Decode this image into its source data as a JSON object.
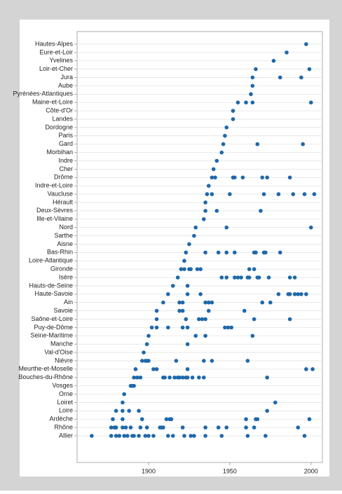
{
  "chart_data": {
    "type": "dotplot",
    "color": "#1f68aa",
    "grid": true,
    "xlim": [
      1856,
      2007
    ],
    "xticks": [
      1900,
      1950,
      2000
    ],
    "categories": [
      "Allier",
      "Rhône",
      "Ardèche",
      "Loire",
      "Loiret",
      "Orne",
      "Vosges",
      "Bouches-du-Rhône",
      "Meurthe-et-Moselle",
      "Nièvre",
      "Val-d'Oise",
      "Manche",
      "Seine-Maritime",
      "Puy-de-Dôme",
      "Saône-et-Loire",
      "Savoie",
      "Ain",
      "Haute-Savoie",
      "Hauts-de-Seine",
      "Isère",
      "Gironde",
      "Loire-Atlantique",
      "Bas-Rhin",
      "Aisne",
      "Sarthe",
      "Nord",
      "Ille-et-Vilaine",
      "Deux-Sèvres",
      "Hérault",
      "Vaucluse",
      "Indre-et-Loire",
      "Drôme",
      "Cher",
      "Indre",
      "Morbihan",
      "Gard",
      "Paris",
      "Dordogne",
      "Landes",
      "Côte-d'Or",
      "Maine-et-Loire",
      "Pyrénées-Atlantiques",
      "Aube",
      "Jura",
      "Loir-et-Cher",
      "Yvelines",
      "Eure-et-Loir",
      "Hautes-Alpes"
    ],
    "values": [
      [
        1865,
        1877,
        1880,
        1882,
        1885,
        1887,
        1890,
        1891,
        1894,
        1898,
        1900,
        1903,
        1912,
        1915,
        1922,
        1926,
        1928,
        1935,
        1945,
        1961,
        1972,
        1996
      ],
      [
        1877,
        1879,
        1880,
        1884,
        1886,
        1889,
        1895,
        1899,
        1907,
        1908,
        1909,
        1921,
        1935,
        1943,
        1948,
        1960,
        1965,
        1992
      ],
      [
        1878,
        1884,
        1896,
        1911,
        1913,
        1914,
        1960,
        1966,
        1967,
        1999
      ],
      [
        1880,
        1884,
        1888,
        1894,
        1973
      ],
      [
        1884,
        1978
      ],
      [
        1885
      ],
      [
        1889,
        1890,
        1891
      ],
      [
        1891,
        1893,
        1895,
        1909,
        1910,
        1913,
        1916,
        1918,
        1919,
        1921,
        1923,
        1924,
        1927,
        1931,
        1934,
        1973
      ],
      [
        1892,
        1903,
        1905,
        1924,
        1997,
        2001
      ],
      [
        1896,
        1898,
        1899,
        1900,
        1917,
        1934,
        1939,
        1961
      ],
      [
        1897
      ],
      [
        1899,
        1924
      ],
      [
        1900,
        1929,
        1935,
        1964
      ],
      [
        1902,
        1905,
        1912,
        1921,
        1924,
        1947,
        1949,
        1951
      ],
      [
        1905,
        1923,
        1931,
        1933,
        1935,
        1965,
        1987
      ],
      [
        1905,
        1919,
        1921,
        1937,
        1959
      ],
      [
        1909,
        1919,
        1921,
        1935,
        1937,
        1937,
        1939,
        1970,
        1975
      ],
      [
        1912,
        1924,
        1932,
        1980,
        1986,
        1987,
        1990,
        1992,
        1994,
        1997
      ],
      [
        1915,
        1924
      ],
      [
        1918,
        1945,
        1948,
        1953,
        1955,
        1957,
        1961,
        1962,
        1967,
        1968,
        1974,
        1987,
        1990
      ],
      [
        1920,
        1922,
        1925,
        1926,
        1930,
        1932,
        1962,
        1965
      ],
      [
        1922
      ],
      [
        1923,
        1935,
        1943,
        1948,
        1953,
        1965,
        1966,
        1971,
        1972,
        1981
      ],
      [
        1925
      ],
      [
        1928
      ],
      [
        1929,
        1948,
        2000
      ],
      [
        1934
      ],
      [
        1935,
        1942,
        1969
      ],
      [
        1935
      ],
      [
        1936,
        1939,
        1950,
        1971,
        1980,
        1989,
        1996,
        2002
      ],
      [
        1937
      ],
      [
        1939,
        1941,
        1952,
        1953,
        1958,
        1970,
        1973,
        1987
      ],
      [
        1940
      ],
      [
        1942
      ],
      [
        1945
      ],
      [
        1946,
        1967,
        1995
      ],
      [
        1947
      ],
      [
        1948
      ],
      [
        1952
      ],
      [
        1952
      ],
      [
        1955,
        1960,
        1964,
        2000
      ],
      [
        1963
      ],
      [
        1964
      ],
      [
        1964,
        1981,
        1994
      ],
      [
        1966,
        1999
      ],
      [
        1977
      ],
      [
        1985
      ],
      [
        1997
      ]
    ]
  }
}
